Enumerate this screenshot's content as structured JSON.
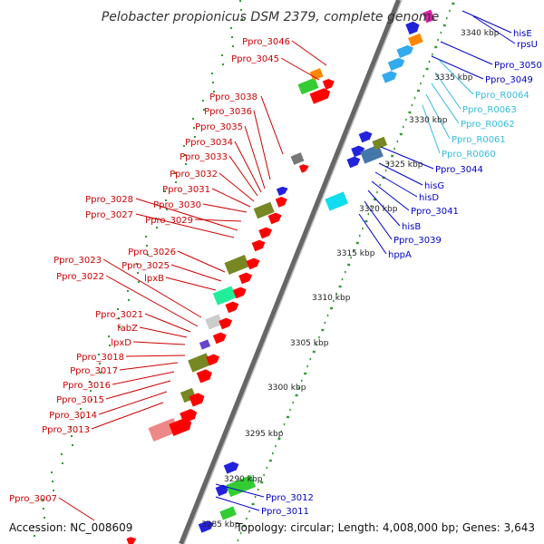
{
  "title": "Pelobacter propionicus DSM 2379, complete genome",
  "accession": "Accession: NC_008609",
  "summary": "Topology: circular; Length: 4,008,000 bp; Genes: 3,643",
  "colors": {
    "left_label": "#cc0000",
    "right_label": "#0000cc",
    "rna_label": "#33bbdd",
    "backbone": "#888888",
    "gc_dots": "#339933"
  },
  "left_labels": [
    "Ppro_3046",
    "Ppro_3045",
    "Ppro_3038",
    "Ppro_3036",
    "Ppro_3035",
    "Ppro_3034",
    "Ppro_3033",
    "Ppro_3032",
    "Ppro_3031",
    "Ppro_3030",
    "Ppro_3028",
    "Ppro_3027",
    "Ppro_3029",
    "Ppro_3026",
    "Ppro_3025",
    "lpxB",
    "Ppro_3023",
    "Ppro_3022",
    "Ppro_3021",
    "fabZ",
    "lpxD",
    "Ppro_3018",
    "Ppro_3017",
    "Ppro_3016",
    "Ppro_3015",
    "Ppro_3014",
    "Ppro_3013",
    "Ppro_3007"
  ],
  "right_labels": [
    "hisE",
    "rpsU",
    "Ppro_3050",
    "Ppro_3049",
    "Ppro_3044",
    "hisG",
    "hisD",
    "Ppro_3041",
    "hisB",
    "Ppro_3039",
    "hppA",
    "Ppro_3012",
    "Ppro_3011"
  ],
  "rna_labels": [
    "Ppro_R0064",
    "Ppro_R0063",
    "Ppro_R0062",
    "Ppro_R0061",
    "Ppro_R0060"
  ],
  "kbp_labels": [
    "3340 kbp",
    "3335 kbp",
    "3330 kbp",
    "3325 kbp",
    "3320 kbp",
    "3315 kbp",
    "3310 kbp",
    "3305 kbp",
    "3300 kbp",
    "3295 kbp",
    "3290 kbp",
    "3285 kbp"
  ]
}
